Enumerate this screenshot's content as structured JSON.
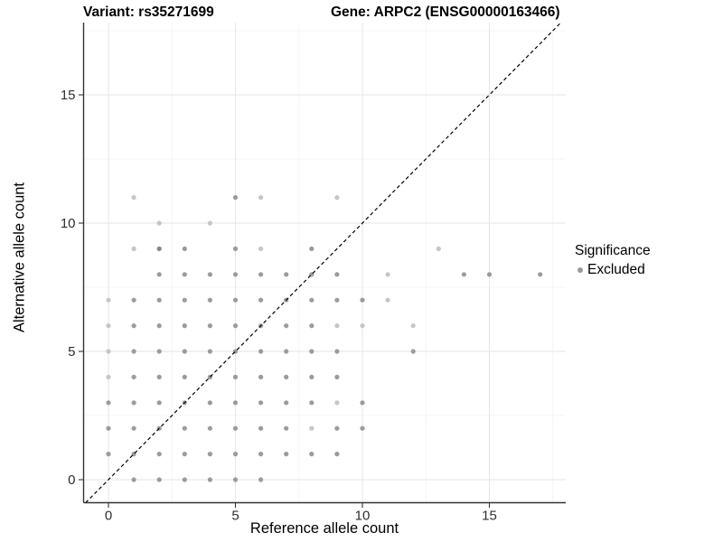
{
  "titles": {
    "left": "Variant: rs35271699",
    "right": "Gene: ARPC2 (ENSG00000163466)"
  },
  "legend": {
    "title": "Significance",
    "items": [
      {
        "label": "Excluded",
        "color": "#9b9b9b",
        "marker": "circle-icon"
      }
    ]
  },
  "colors": {
    "background": "#ffffff",
    "axis_line": "#333333",
    "tick": "#333333",
    "tick_label": "#2e2e2e",
    "grid_major": "#e6e6e6",
    "grid_minor": "#f2f2f2",
    "identity_line": "#000000"
  },
  "chart_data": {
    "type": "scatter",
    "xlabel": "Reference allele count",
    "ylabel": "Alternative allele count",
    "x_ticks": [
      0,
      5,
      10,
      15
    ],
    "y_ticks": [
      0,
      5,
      10,
      15
    ],
    "x_minor_gridlines": [
      2.5,
      7.5,
      12.5,
      17.5
    ],
    "y_minor_gridlines": [
      2.5,
      7.5,
      12.5,
      17.5
    ],
    "xlim": [
      -0.9,
      17.9
    ],
    "ylim": [
      -0.9,
      17.8
    ],
    "grid": true,
    "legend_position": "right",
    "identity_line": {
      "slope": 1,
      "intercept": 0,
      "style": "dashed",
      "color": "#000000"
    },
    "point_radius": 2.6,
    "point_colors": {
      "l": "#c6c6c6",
      "m": "#9b9b9b",
      "d": "#868686"
    },
    "series": [
      {
        "name": "Excluded",
        "points": [
          [
            1,
            11,
            "l"
          ],
          [
            5,
            11,
            "m"
          ],
          [
            6,
            11,
            "l"
          ],
          [
            9,
            11,
            "l"
          ],
          [
            2,
            10,
            "l"
          ],
          [
            4,
            10,
            "l"
          ],
          [
            1,
            9,
            "l"
          ],
          [
            2,
            9,
            "d"
          ],
          [
            3,
            9,
            "m"
          ],
          [
            5,
            9,
            "m"
          ],
          [
            6,
            9,
            "l"
          ],
          [
            8,
            9,
            "m"
          ],
          [
            13,
            9,
            "l"
          ],
          [
            2,
            8,
            "m"
          ],
          [
            3,
            8,
            "m"
          ],
          [
            4,
            8,
            "m"
          ],
          [
            5,
            8,
            "m"
          ],
          [
            6,
            8,
            "m"
          ],
          [
            7,
            8,
            "m"
          ],
          [
            8,
            8,
            "m"
          ],
          [
            9,
            8,
            "m"
          ],
          [
            11,
            8,
            "l"
          ],
          [
            14,
            8,
            "m"
          ],
          [
            15,
            8,
            "m"
          ],
          [
            17,
            8,
            "m"
          ],
          [
            0,
            7,
            "l"
          ],
          [
            1,
            7,
            "m"
          ],
          [
            2,
            7,
            "m"
          ],
          [
            3,
            7,
            "m"
          ],
          [
            4,
            7,
            "m"
          ],
          [
            5,
            7,
            "m"
          ],
          [
            6,
            7,
            "m"
          ],
          [
            7,
            7,
            "m"
          ],
          [
            8,
            7,
            "m"
          ],
          [
            9,
            7,
            "m"
          ],
          [
            10,
            7,
            "m"
          ],
          [
            11,
            7,
            "l"
          ],
          [
            0,
            6,
            "l"
          ],
          [
            1,
            6,
            "m"
          ],
          [
            2,
            6,
            "m"
          ],
          [
            3,
            6,
            "m"
          ],
          [
            4,
            6,
            "m"
          ],
          [
            5,
            6,
            "m"
          ],
          [
            6,
            6,
            "m"
          ],
          [
            7,
            6,
            "m"
          ],
          [
            8,
            6,
            "m"
          ],
          [
            9,
            6,
            "l"
          ],
          [
            10,
            6,
            "l"
          ],
          [
            12,
            6,
            "l"
          ],
          [
            0,
            5,
            "l"
          ],
          [
            1,
            5,
            "m"
          ],
          [
            2,
            5,
            "m"
          ],
          [
            3,
            5,
            "m"
          ],
          [
            4,
            5,
            "m"
          ],
          [
            5,
            5,
            "m"
          ],
          [
            6,
            5,
            "m"
          ],
          [
            7,
            5,
            "m"
          ],
          [
            8,
            5,
            "m"
          ],
          [
            9,
            5,
            "m"
          ],
          [
            12,
            5,
            "m"
          ],
          [
            0,
            4,
            "l"
          ],
          [
            1,
            4,
            "m"
          ],
          [
            2,
            4,
            "m"
          ],
          [
            3,
            4,
            "m"
          ],
          [
            4,
            4,
            "m"
          ],
          [
            5,
            4,
            "m"
          ],
          [
            6,
            4,
            "m"
          ],
          [
            7,
            4,
            "m"
          ],
          [
            8,
            4,
            "m"
          ],
          [
            9,
            4,
            "m"
          ],
          [
            0,
            3,
            "m"
          ],
          [
            1,
            3,
            "m"
          ],
          [
            2,
            3,
            "m"
          ],
          [
            3,
            3,
            "m"
          ],
          [
            4,
            3,
            "m"
          ],
          [
            5,
            3,
            "m"
          ],
          [
            6,
            3,
            "m"
          ],
          [
            7,
            3,
            "m"
          ],
          [
            8,
            3,
            "m"
          ],
          [
            9,
            3,
            "l"
          ],
          [
            10,
            3,
            "m"
          ],
          [
            0,
            2,
            "m"
          ],
          [
            1,
            2,
            "m"
          ],
          [
            2,
            2,
            "m"
          ],
          [
            3,
            2,
            "m"
          ],
          [
            4,
            2,
            "m"
          ],
          [
            5,
            2,
            "m"
          ],
          [
            6,
            2,
            "m"
          ],
          [
            7,
            2,
            "m"
          ],
          [
            8,
            2,
            "l"
          ],
          [
            9,
            2,
            "m"
          ],
          [
            10,
            2,
            "m"
          ],
          [
            0,
            1,
            "m"
          ],
          [
            1,
            1,
            "m"
          ],
          [
            2,
            1,
            "m"
          ],
          [
            3,
            1,
            "m"
          ],
          [
            4,
            1,
            "m"
          ],
          [
            5,
            1,
            "m"
          ],
          [
            6,
            1,
            "m"
          ],
          [
            7,
            1,
            "m"
          ],
          [
            8,
            1,
            "m"
          ],
          [
            9,
            1,
            "m"
          ],
          [
            1,
            0,
            "m"
          ],
          [
            2,
            0,
            "m"
          ],
          [
            3,
            0,
            "m"
          ],
          [
            4,
            0,
            "m"
          ],
          [
            5,
            0,
            "m"
          ],
          [
            6,
            0,
            "m"
          ]
        ]
      }
    ]
  }
}
